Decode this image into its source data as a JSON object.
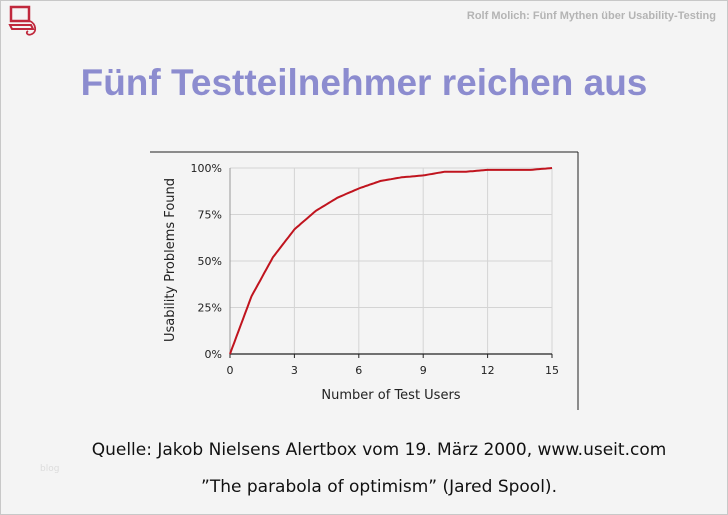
{
  "header": {
    "subtitle": "Rolf Molich: Fünf Mythen über Usability-Testing",
    "logo": "computer-logo"
  },
  "title": "Fünf Testteilnehmer reichen aus",
  "chart_data": {
    "type": "line",
    "title": "",
    "xlabel": "Number of Test Users",
    "ylabel": "Usability Problems Found",
    "x": [
      0,
      1,
      2,
      3,
      4,
      5,
      6,
      7,
      8,
      9,
      10,
      11,
      12,
      13,
      14,
      15
    ],
    "series": [
      {
        "name": "Usability Problems Found",
        "values": [
          0,
          31,
          52,
          67,
          77,
          84,
          89,
          93,
          95,
          96,
          98,
          98,
          99,
          99,
          99,
          100
        ],
        "color": "#c0141e"
      }
    ],
    "xlim": [
      0,
      15
    ],
    "ylim": [
      0,
      100
    ],
    "xticks": [
      "0",
      "3",
      "6",
      "9",
      "12",
      "15"
    ],
    "yticks": [
      "0%",
      "25%",
      "50%",
      "75%",
      "100%"
    ],
    "grid": true,
    "legend": "none"
  },
  "footer": {
    "source": "Quelle: Jakob Nielsens Alertbox vom 19. März 2000, www.useit.com",
    "quote": "”The parabola of optimism” (Jared Spool).",
    "watermark": "blog"
  }
}
